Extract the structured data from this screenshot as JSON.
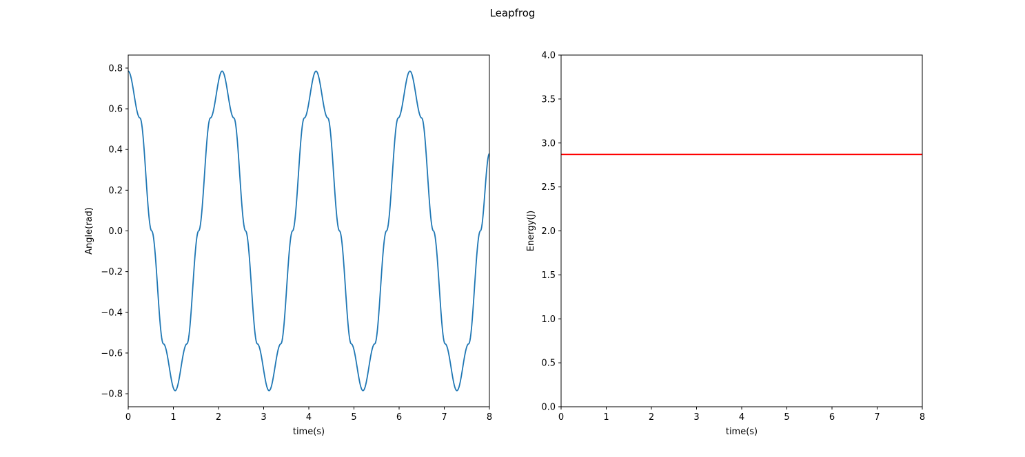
{
  "figure": {
    "title": "Leapfrog"
  },
  "chart_data": [
    {
      "type": "line",
      "title": "",
      "xlabel": "time(s)",
      "ylabel": "Angle(rad)",
      "xlim": [
        0,
        8
      ],
      "ylim": [
        -0.864,
        0.864
      ],
      "xticks": [
        0,
        1,
        2,
        3,
        4,
        5,
        6,
        7,
        8
      ],
      "xtick_labels": [
        "0",
        "1",
        "2",
        "3",
        "4",
        "5",
        "6",
        "7",
        "8"
      ],
      "yticks": [
        -0.8,
        -0.6,
        -0.4,
        -0.2,
        0.0,
        0.2,
        0.4,
        0.6,
        0.8
      ],
      "ytick_labels": [
        "−0.8",
        "−0.6",
        "−0.4",
        "−0.2",
        "0.0",
        "0.2",
        "0.4",
        "0.6",
        "0.8"
      ],
      "grid": false,
      "series": [
        {
          "color": "#1f77b4",
          "x": [
            0.0,
            0.26,
            0.52,
            0.78,
            1.04,
            1.3,
            1.56,
            1.82,
            2.08,
            2.34,
            2.6,
            2.86,
            3.12,
            3.38,
            3.64,
            3.9,
            4.16,
            4.42,
            4.68,
            4.94,
            5.2,
            5.46,
            5.72,
            5.98,
            6.24,
            6.5,
            6.76,
            7.02,
            7.28,
            7.54,
            7.8,
            8.0
          ],
          "y": [
            0.785,
            0.555,
            0.0,
            -0.555,
            -0.785,
            -0.555,
            0.0,
            0.555,
            0.785,
            0.555,
            0.0,
            -0.555,
            -0.785,
            -0.555,
            0.0,
            0.555,
            0.785,
            0.555,
            0.0,
            -0.555,
            -0.785,
            -0.555,
            0.0,
            0.555,
            0.785,
            0.555,
            0.0,
            -0.555,
            -0.785,
            -0.555,
            0.0,
            0.38
          ]
        }
      ]
    },
    {
      "type": "line",
      "title": "",
      "xlabel": "time(s)",
      "ylabel": "Energy(J)",
      "xlim": [
        0,
        8
      ],
      "ylim": [
        0,
        4
      ],
      "xticks": [
        0,
        1,
        2,
        3,
        4,
        5,
        6,
        7,
        8
      ],
      "xtick_labels": [
        "0",
        "1",
        "2",
        "3",
        "4",
        "5",
        "6",
        "7",
        "8"
      ],
      "yticks": [
        0.0,
        0.5,
        1.0,
        1.5,
        2.0,
        2.5,
        3.0,
        3.5,
        4.0
      ],
      "ytick_labels": [
        "0.0",
        "0.5",
        "1.0",
        "1.5",
        "2.0",
        "2.5",
        "3.0",
        "3.5",
        "4.0"
      ],
      "grid": false,
      "series": [
        {
          "color": "#ff0000",
          "x": [
            0,
            8
          ],
          "y": [
            2.87,
            2.87
          ]
        }
      ]
    }
  ]
}
